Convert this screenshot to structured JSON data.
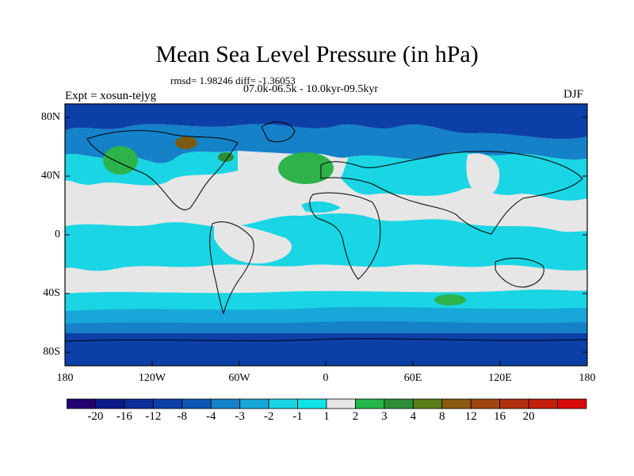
{
  "title": "Mean Sea Level Pressure (in hPa)",
  "stats_line": "rmsd= 1.98246 diff= -1.36053",
  "period": "07.0k-06.5k - 10.0kyr-09.5kyr",
  "experiment": "Expt = xosun-tejyg",
  "season": "DJF",
  "lat_labels": [
    "80N",
    "40N",
    "0",
    "40S",
    "80S"
  ],
  "lon_labels": [
    "180",
    "120W",
    "60W",
    "0",
    "60E",
    "120E",
    "180"
  ],
  "colorbar": {
    "labels": [
      "-20",
      "-16",
      "-12",
      "-8",
      "-4",
      "-3",
      "-2",
      "-1",
      "1",
      "2",
      "3",
      "4",
      "8",
      "12",
      "16",
      "20"
    ],
    "colors": [
      "#24006e",
      "#0a1a87",
      "#0b2d9c",
      "#0c40a8",
      "#0d56b5",
      "#1581c8",
      "#17a8d9",
      "#1ad5e3",
      "#10e3e7",
      "#e6e6e6",
      "#24b84a",
      "#2e8c36",
      "#5a7d16",
      "#8a5a0e",
      "#a04510",
      "#b0300e",
      "#c41e0c",
      "#d80c0c"
    ]
  },
  "map_colors": {
    "ocean_band": "#0c40a8",
    "mid": "#1581c8",
    "cyan": "#1ad5e3",
    "neutral": "#e6e6e6",
    "green": "#2db34a",
    "brown": "#7a5a12",
    "coast": "#000000"
  }
}
